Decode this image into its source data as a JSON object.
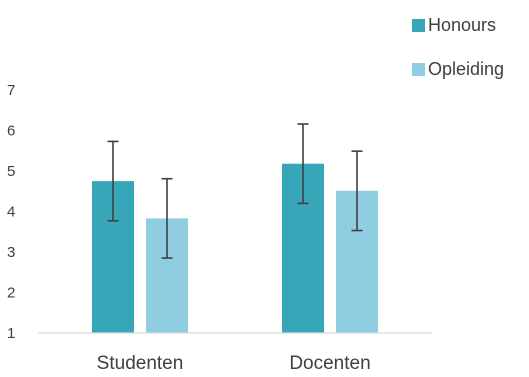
{
  "chart_data": {
    "type": "bar",
    "categories": [
      "Studenten",
      "Docenten"
    ],
    "series": [
      {
        "name": "Honours",
        "values": [
          4.75,
          5.18
        ],
        "error": [
          0.98,
          0.98
        ],
        "color": "#36a6b8"
      },
      {
        "name": "Opleiding",
        "values": [
          3.83,
          4.51
        ],
        "error": [
          0.98,
          0.98
        ],
        "color": "#8fcde0"
      }
    ],
    "yticks": [
      "1",
      "2",
      "3",
      "4",
      "5",
      "6",
      "7"
    ],
    "ylim": [
      1,
      7
    ],
    "legend_position": "top-right",
    "grid": false,
    "error_bar_color": "#404040",
    "axis_color": "#d9d9d9"
  }
}
